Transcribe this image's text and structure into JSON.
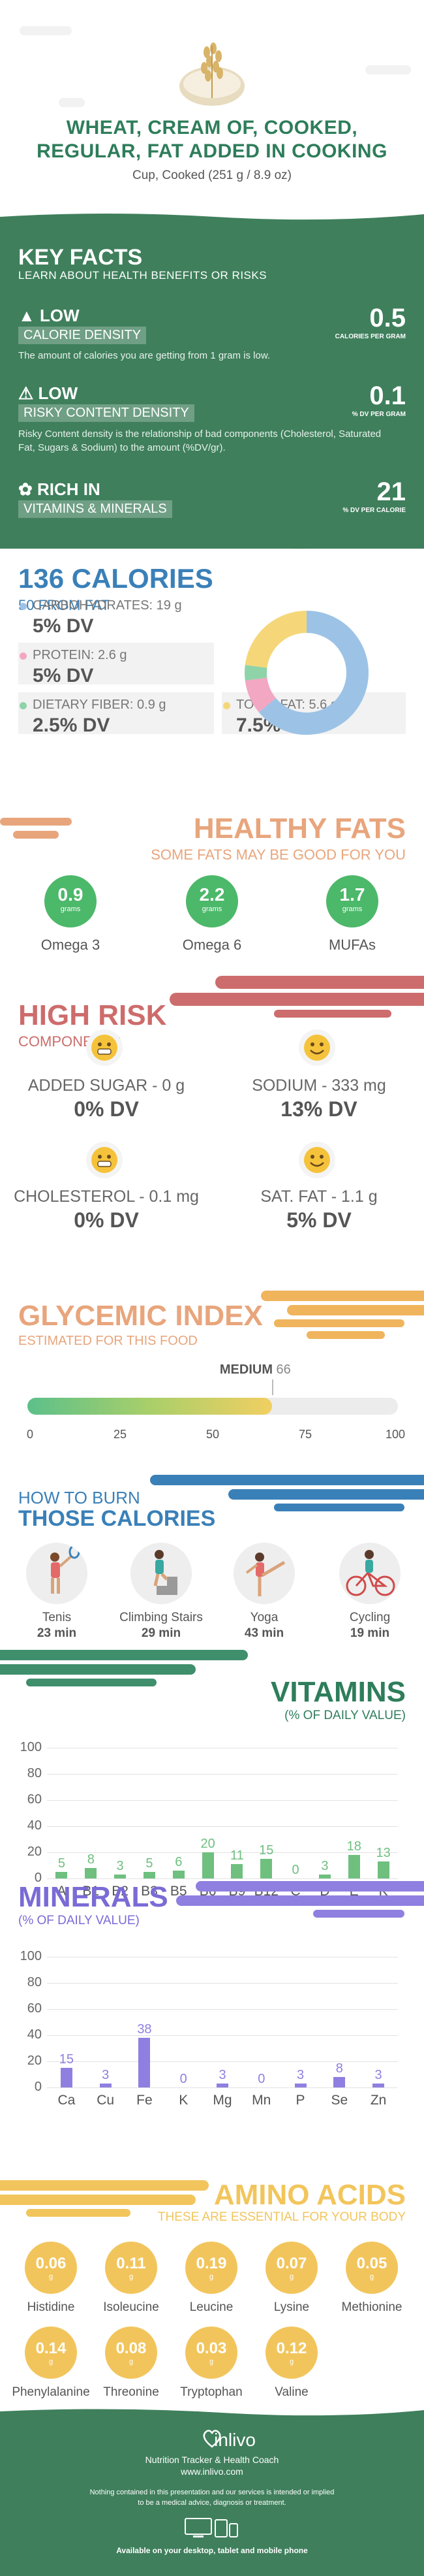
{
  "header": {
    "title": "WHEAT, CREAM OF, COOKED, REGULAR, FAT ADDED IN COOKING",
    "serving": "Cup, Cooked (251 g / 8.9 oz)"
  },
  "key_facts": {
    "title": "KEY FACTS",
    "subtitle": "LEARN ABOUT HEALTH BENEFITS OR RISKS",
    "facts": [
      {
        "level": "LOW",
        "name": "CALORIE DENSITY",
        "value": "0.5",
        "unit": "CALORIES PER GRAM",
        "description": "The amount of calories you are getting from 1 gram is low."
      },
      {
        "level": "LOW",
        "name": "RISKY CONTENT DENSITY",
        "value": "0.1",
        "unit": "% DV PER GRAM",
        "description": "Risky Content density is the relationship of bad components (Cholesterol, Saturated Fat, Sugars & Sodium) to the amount (%DV/gr)."
      },
      {
        "level": "RICH IN",
        "name": "VITAMINS & MINERALS",
        "value": "21",
        "unit": "% DV PER CALORIE",
        "description": ""
      }
    ]
  },
  "calories": {
    "title": "136 CALORIES",
    "subtitle": "50 FROM FAT",
    "macros": [
      {
        "label": "CARBOHYDRATES: 19 g",
        "dv": "5% DV",
        "color": "#9cc3e6"
      },
      {
        "label": "PROTEIN: 2.6 g",
        "dv": "5% DV",
        "color": "#f2a7c3"
      },
      {
        "label": "DIETARY FIBER: 0.9 g",
        "dv": "2.5% DV",
        "color": "#8fd3a8"
      },
      {
        "label": "TOTAL FAT: 5.6 g",
        "dv": "7.5% DV",
        "color": "#f5d77a"
      }
    ],
    "donut": [
      {
        "name": "carbohydrates",
        "value": 64,
        "color": "#9cc3e6"
      },
      {
        "name": "protein",
        "value": 9,
        "color": "#f2a7c3"
      },
      {
        "name": "fiber",
        "value": 4,
        "color": "#8fd3a8"
      },
      {
        "name": "fat",
        "value": 23,
        "color": "#f5d77a"
      }
    ]
  },
  "healthy_fats": {
    "title": "HEALTHY FATS",
    "subtitle": "SOME FATS MAY BE GOOD FOR YOU",
    "items": [
      {
        "value": "0.9",
        "unit": "grams",
        "name": "Omega 3"
      },
      {
        "value": "2.2",
        "unit": "grams",
        "name": "Omega 6"
      },
      {
        "value": "1.7",
        "unit": "grams",
        "name": "MUFAs"
      }
    ]
  },
  "high_risk": {
    "title": "HIGH RISK",
    "subtitle": "COMPONENTS",
    "items": [
      {
        "label": "ADDED SUGAR - 0 g",
        "dv": "0% DV",
        "icon": "grin-face-icon"
      },
      {
        "label": "SODIUM - 333 mg",
        "dv": "13% DV",
        "icon": "smile-face-icon"
      },
      {
        "label": "CHOLESTEROL - 0.1 mg",
        "dv": "0% DV",
        "icon": "grin-face-icon"
      },
      {
        "label": "SAT. FAT - 1.1 g",
        "dv": "5% DV",
        "icon": "smile-face-icon"
      }
    ]
  },
  "glycemic": {
    "title": "GLYCEMIC INDEX",
    "subtitle": "ESTIMATED FOR THIS FOOD",
    "level": "MEDIUM",
    "value": 66,
    "value_text": "66",
    "ticks": [
      "0",
      "25",
      "50",
      "75",
      "100"
    ]
  },
  "burn": {
    "title_small": "HOW TO BURN",
    "title_big": "THOSE CALORIES",
    "activities": [
      {
        "name": "Tenis",
        "minutes": "23 min"
      },
      {
        "name": "Climbing Stairs",
        "minutes": "29 min"
      },
      {
        "name": "Yoga",
        "minutes": "43 min"
      },
      {
        "name": "Cycling",
        "minutes": "19 min"
      }
    ]
  },
  "vitamins": {
    "title": "VITAMINS",
    "subtitle": "(% OF DAILY VALUE)",
    "yticks": [
      "100",
      "80",
      "60",
      "40",
      "20",
      "0"
    ]
  },
  "minerals": {
    "title": "MINERALS",
    "subtitle": "(% OF DAILY VALUE)",
    "yticks": [
      "100",
      "80",
      "60",
      "40",
      "20",
      "0"
    ]
  },
  "chart_data": [
    {
      "type": "bar",
      "title": "VITAMINS",
      "subtitle": "(% OF DAILY VALUE)",
      "categories": [
        "A",
        "B1",
        "B2",
        "B3",
        "B5",
        "B6",
        "B9",
        "B12",
        "C",
        "D",
        "E",
        "K"
      ],
      "values": [
        5,
        8,
        3,
        5,
        6,
        20,
        11,
        15,
        0,
        3,
        18,
        13
      ],
      "ylim": [
        0,
        100
      ],
      "grid": true,
      "color": "#6fbf7f"
    },
    {
      "type": "bar",
      "title": "MINERALS",
      "subtitle": "(% OF DAILY VALUE)",
      "categories": [
        "Ca",
        "Cu",
        "Fe",
        "K",
        "Mg",
        "Mn",
        "P",
        "Se",
        "Zn"
      ],
      "values": [
        15,
        3,
        38,
        0,
        3,
        0,
        3,
        8,
        3
      ],
      "ylim": [
        0,
        100
      ],
      "grid": true,
      "color": "#8f7fe0"
    }
  ],
  "amino": {
    "title": "AMINO ACIDS",
    "subtitle": "THESE ARE ESSENTIAL FOR YOUR BODY",
    "items": [
      {
        "value": "0.06",
        "unit": "g",
        "name": "Histidine"
      },
      {
        "value": "0.11",
        "unit": "g",
        "name": "Isoleucine"
      },
      {
        "value": "0.19",
        "unit": "g",
        "name": "Leucine"
      },
      {
        "value": "0.07",
        "unit": "g",
        "name": "Lysine"
      },
      {
        "value": "0.05",
        "unit": "g",
        "name": "Methionine"
      },
      {
        "value": "0.14",
        "unit": "g",
        "name": "Phenylalanine"
      },
      {
        "value": "0.08",
        "unit": "g",
        "name": "Threonine"
      },
      {
        "value": "0.03",
        "unit": "g",
        "name": "Tryptophan"
      },
      {
        "value": "0.12",
        "unit": "g",
        "name": "Valine"
      }
    ]
  },
  "footer": {
    "brand": "inlivo",
    "tagline": "Nutrition Tracker & Health Coach",
    "url": "www.inlivo.com",
    "disclaimer1": "Nothing contained in this presentation and our services is intended or implied",
    "disclaimer2": "to be a medical advice, diagnosis or treatment.",
    "available": "Available on your desktop, tablet and mobile phone"
  }
}
